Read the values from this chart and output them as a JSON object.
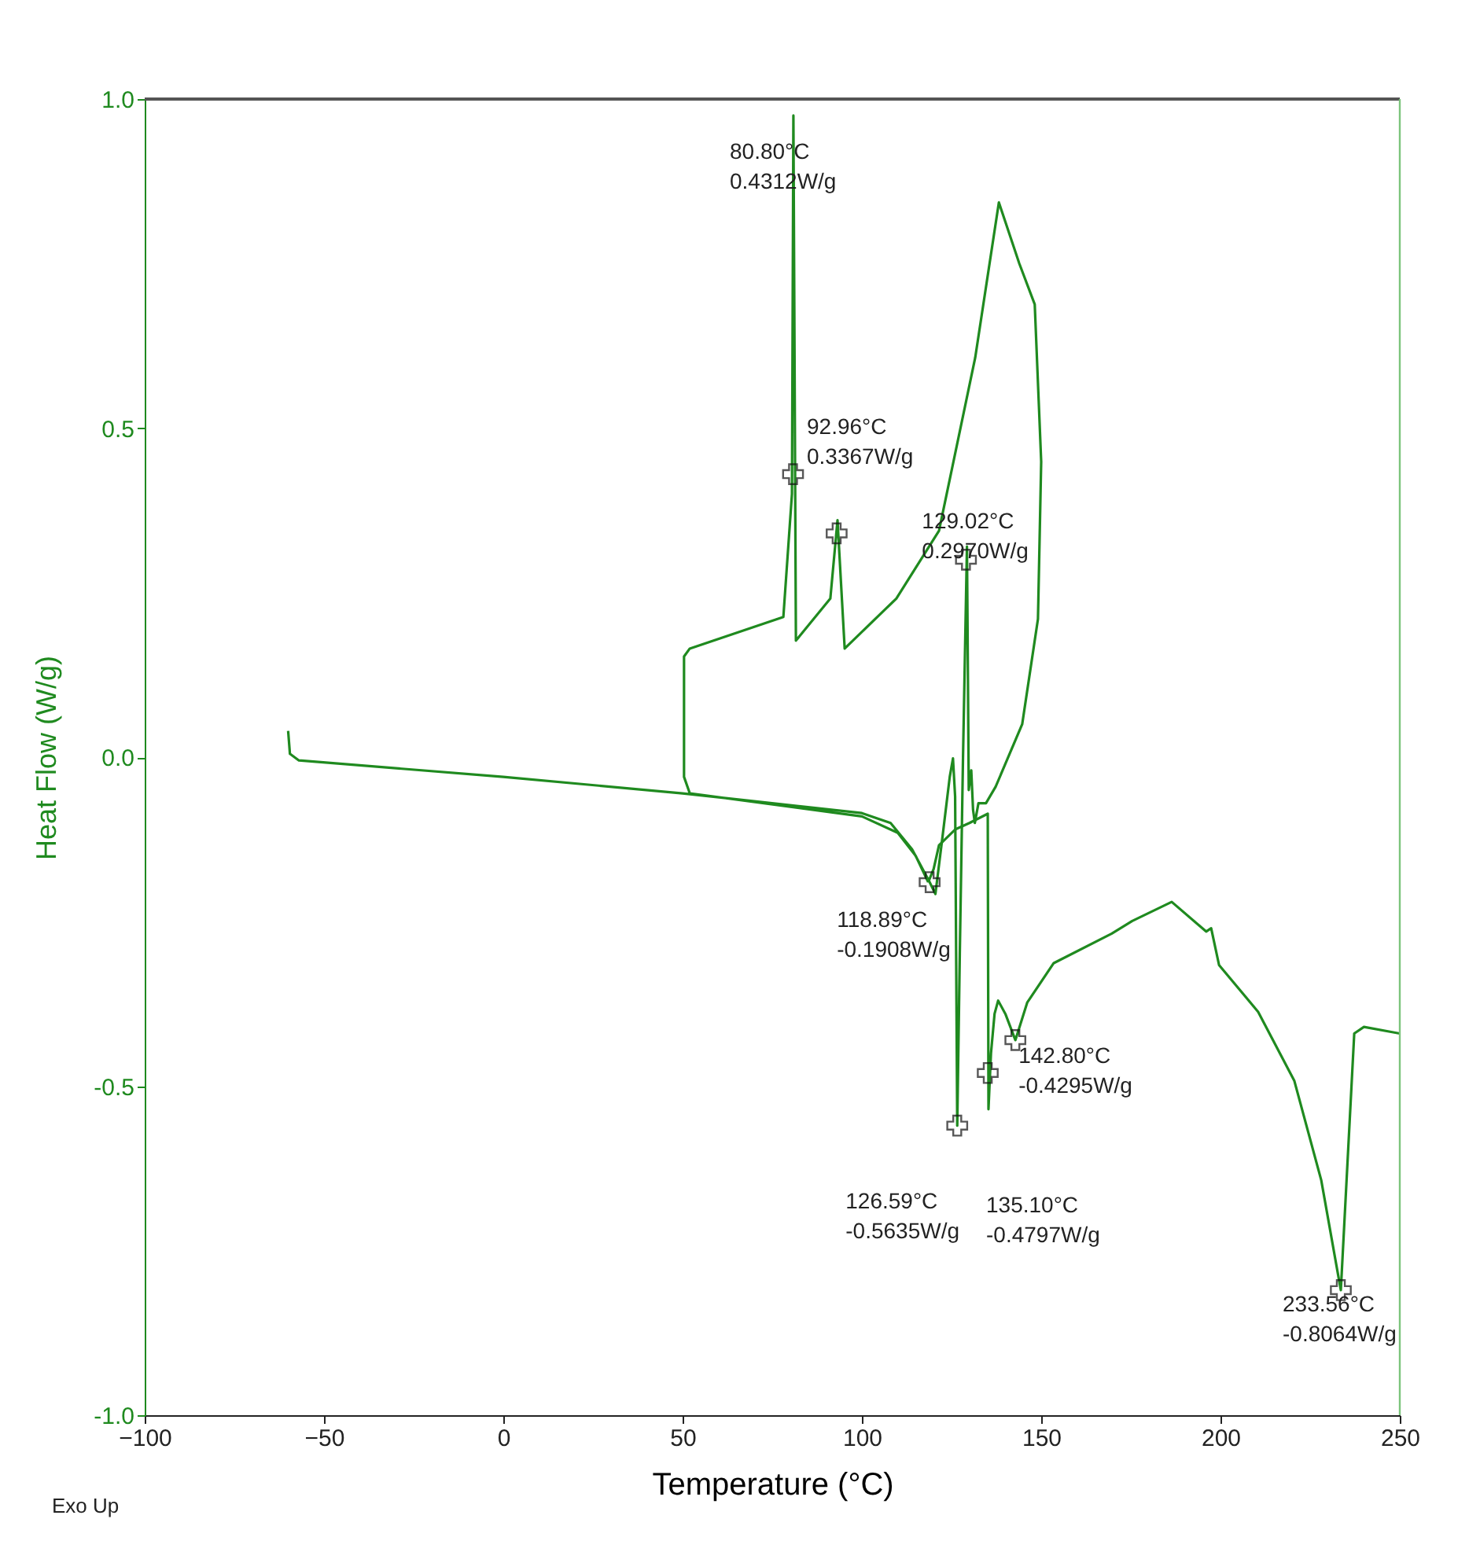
{
  "chart_data": {
    "type": "line",
    "xlabel": "Temperature (°C)",
    "ylabel": "Heat Flow (W/g)",
    "xlim": [
      -100,
      250
    ],
    "xticks": [
      -100,
      -50,
      0,
      50,
      100,
      150,
      200,
      250
    ],
    "ylim": [
      -1.0,
      1.0
    ],
    "yticks": [
      {
        "value": -1.0,
        "label": "-1.0"
      },
      {
        "value": -0.5,
        "label": "-0.5"
      },
      {
        "value": 0,
        "label": "0.0"
      },
      {
        "value": 0.5,
        "label": "0.5"
      },
      {
        "value": 1.0,
        "label": "1.0"
      }
    ],
    "grid": false,
    "marker": "none",
    "line_style": "solid",
    "series": [
      {
        "color": "#1f8a1f",
        "x": [
          -60,
          -59.5,
          -57,
          0,
          50,
          100,
          108,
          114,
          118.89,
          120.5,
          122.5,
          124.5,
          125.4,
          126,
          126.59,
          127.3,
          128.2,
          129.3,
          129.8,
          130.5,
          131,
          131.5,
          132.5,
          134.6,
          137.3,
          144.7,
          149.1,
          150,
          148.2,
          143.9,
          138.2,
          131.6,
          121.5,
          109.6,
          95.2,
          93.2,
          91.2,
          81.6,
          80.9,
          80.5,
          78.1,
          52,
          50.4,
          50.4,
          52,
          100,
          110,
          115,
          118.5
        ],
        "values": [
          0.04,
          0.005,
          -0.005,
          -0.03,
          -0.055,
          -0.085,
          -0.1,
          -0.14,
          -0.19,
          -0.208,
          -0.12,
          -0.03,
          -0.002,
          -0.06,
          -0.56,
          -0.3,
          0.0,
          0.32,
          -0.05,
          -0.02,
          -0.08,
          -0.1,
          -0.07,
          -0.07,
          -0.045,
          0.05,
          0.21,
          0.449,
          0.688,
          0.75,
          0.843,
          0.607,
          0.344,
          0.241,
          0.165,
          0.36,
          0.241,
          0.177,
          0.975,
          0.4,
          0.213,
          0.165,
          0.153,
          -0.03,
          -0.055,
          -0.09,
          -0.115,
          -0.15,
          -0.19
        ]
      },
      {
        "color": "#1f8a1f",
        "x": [
          118.5,
          120,
          121.5,
          126,
          130,
          135.1,
          135.3,
          136,
          137,
          138,
          140,
          142.8,
          146.1,
          153.5,
          169.7,
          175.4,
          186.4,
          196,
          197.4,
          199.6,
          210.5,
          220.6,
          228.1,
          233.56,
          237.3,
          240,
          250
        ],
        "values": [
          -0.19,
          -0.17,
          -0.134,
          -0.11,
          -0.1,
          -0.086,
          -0.535,
          -0.45,
          -0.39,
          -0.37,
          -0.39,
          -0.43,
          -0.373,
          -0.313,
          -0.268,
          -0.249,
          -0.22,
          -0.265,
          -0.26,
          -0.316,
          -0.387,
          -0.492,
          -0.643,
          -0.81,
          -0.42,
          -0.41,
          -0.42
        ]
      },
      {
        "type": "scatter",
        "marker": "cross",
        "color": "#111111",
        "x": [
          80.8,
          92.96,
          129.02,
          118.89,
          126.59,
          135.1,
          142.8,
          233.56
        ],
        "values": [
          0.43,
          0.34,
          0.3,
          -0.19,
          -0.56,
          -0.48,
          -0.43,
          -0.81
        ]
      }
    ],
    "annotations": [
      "80.80°C\n0.4312W/g",
      "92.96°C\n0.3367W/g",
      {
        "text": "129.02°C\n0.2970W/g",
        "x": 129.02,
        "y": 0.297
      },
      {
        "text": "118.89°C\n-0.1908W/g",
        "x": 118.89,
        "y": -0.1908
      },
      {
        "text": "126.59°C\n-0.5635W/g",
        "x": 126.59,
        "y": -0.5635
      },
      "135.10°C\n-0.4797W/g",
      {
        "text": "142.80°C\n-0.4295W/g",
        "x": 142.8,
        "y": -0.4295
      },
      {
        "text": "233.56°C\n-0.8064W/g",
        "x": 233.56,
        "y": -0.8064
      },
      "Exo Up"
    ]
  }
}
